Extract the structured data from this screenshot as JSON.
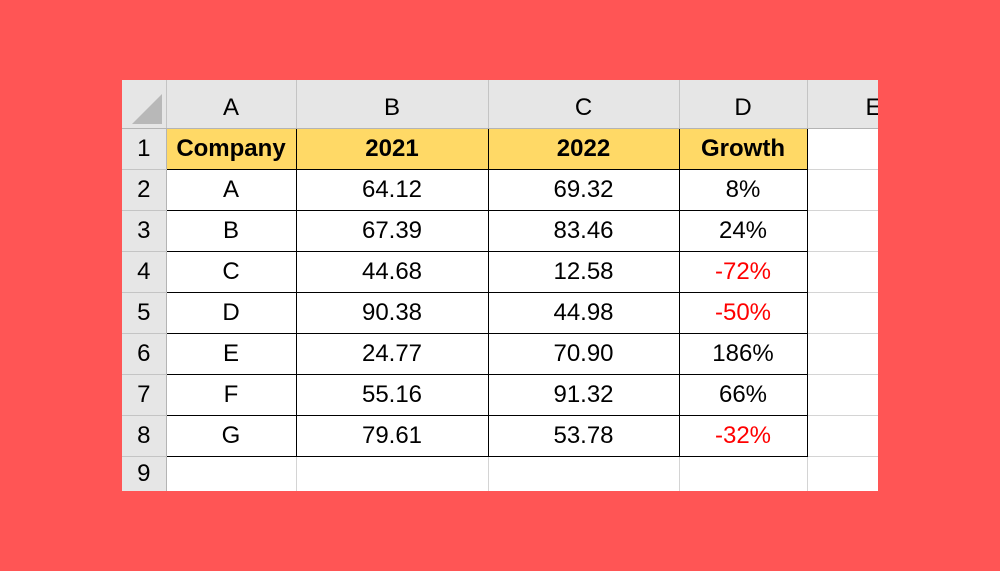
{
  "column_headers": [
    "A",
    "B",
    "C",
    "D",
    "E"
  ],
  "row_numbers": [
    "1",
    "2",
    "3",
    "4",
    "5",
    "6",
    "7",
    "8",
    "9"
  ],
  "table": {
    "headers": [
      "Company",
      "2021",
      "2022",
      "Growth"
    ],
    "rows": [
      [
        "A",
        "64.12",
        "69.32",
        "8%"
      ],
      [
        "B",
        "67.39",
        "83.46",
        "24%"
      ],
      [
        "C",
        "44.68",
        "12.58",
        "-72%"
      ],
      [
        "D",
        "90.38",
        "44.98",
        "-50%"
      ],
      [
        "E",
        "24.77",
        "70.90",
        "186%"
      ],
      [
        "F",
        "55.16",
        "91.32",
        "66%"
      ],
      [
        "G",
        "79.61",
        "53.78",
        "-32%"
      ]
    ]
  },
  "colors": {
    "background": "#ff5555",
    "header_fill": "#ffd966",
    "negative_text": "#ff0000",
    "grid_header": "#e6e6e6"
  }
}
